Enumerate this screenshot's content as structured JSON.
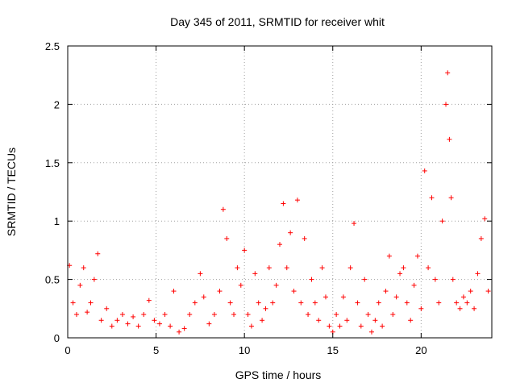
{
  "chart_data": {
    "type": "scatter",
    "title": "Day 345 of 2011, SRMTID for receiver whit",
    "xlabel": "GPS time / hours",
    "ylabel": "SRMTID / TECUs",
    "xlim": [
      0,
      24
    ],
    "ylim": [
      0,
      2.5
    ],
    "xticks": [
      0,
      5,
      10,
      15,
      20
    ],
    "yticks": [
      0,
      0.5,
      1,
      1.5,
      2,
      2.5
    ],
    "ytick_labels": [
      "0",
      "0.5",
      "1",
      "1.5",
      "2",
      "2.5"
    ],
    "grid": true,
    "marker": "+",
    "color": "#ff0000",
    "series": [
      {
        "name": "SRMTID",
        "x": [
          0.1,
          0.3,
          0.5,
          0.7,
          0.9,
          1.1,
          1.3,
          1.5,
          1.7,
          1.9,
          2.2,
          2.5,
          2.8,
          3.1,
          3.4,
          3.7,
          4.0,
          4.3,
          4.6,
          4.9,
          5.2,
          5.5,
          5.8,
          6.0,
          6.3,
          6.6,
          6.9,
          7.2,
          7.5,
          7.7,
          8.0,
          8.3,
          8.6,
          8.8,
          9.0,
          9.2,
          9.4,
          9.6,
          9.8,
          10.0,
          10.2,
          10.4,
          10.6,
          10.8,
          11.0,
          11.2,
          11.4,
          11.6,
          11.8,
          12.0,
          12.2,
          12.4,
          12.6,
          12.8,
          13.0,
          13.2,
          13.4,
          13.6,
          13.8,
          14.0,
          14.2,
          14.4,
          14.6,
          14.8,
          15.0,
          15.2,
          15.4,
          15.6,
          15.8,
          16.0,
          16.2,
          16.4,
          16.6,
          16.8,
          17.0,
          17.2,
          17.4,
          17.6,
          17.8,
          18.0,
          18.2,
          18.4,
          18.6,
          18.8,
          19.0,
          19.2,
          19.4,
          19.6,
          19.8,
          20.0,
          20.2,
          20.4,
          20.6,
          20.8,
          21.0,
          21.2,
          21.4,
          21.5,
          21.6,
          21.7,
          21.8,
          22.0,
          22.2,
          22.4,
          22.6,
          22.8,
          23.0,
          23.2,
          23.4,
          23.6,
          23.8
        ],
        "y": [
          0.62,
          0.3,
          0.2,
          0.45,
          0.6,
          0.22,
          0.3,
          0.5,
          0.72,
          0.15,
          0.25,
          0.1,
          0.15,
          0.2,
          0.12,
          0.18,
          0.1,
          0.2,
          0.32,
          0.15,
          0.12,
          0.2,
          0.1,
          0.4,
          0.05,
          0.08,
          0.2,
          0.3,
          0.55,
          0.35,
          0.12,
          0.2,
          0.4,
          1.1,
          0.85,
          0.3,
          0.2,
          0.6,
          0.45,
          0.75,
          0.2,
          0.1,
          0.55,
          0.3,
          0.15,
          0.25,
          0.6,
          0.3,
          0.45,
          0.8,
          1.15,
          0.6,
          0.9,
          0.4,
          1.18,
          0.3,
          0.85,
          0.2,
          0.5,
          0.3,
          0.15,
          0.6,
          0.35,
          0.1,
          0.05,
          0.2,
          0.1,
          0.35,
          0.15,
          0.6,
          0.98,
          0.3,
          0.1,
          0.5,
          0.2,
          0.05,
          0.15,
          0.3,
          0.1,
          0.4,
          0.7,
          0.2,
          0.35,
          0.55,
          0.6,
          0.3,
          0.15,
          0.45,
          0.7,
          0.25,
          1.43,
          0.6,
          1.2,
          0.5,
          0.3,
          1.0,
          2.0,
          2.27,
          1.7,
          1.2,
          0.5,
          0.3,
          0.25,
          0.35,
          0.3,
          0.4,
          0.25,
          0.55,
          0.85,
          1.02,
          0.4
        ]
      }
    ]
  }
}
